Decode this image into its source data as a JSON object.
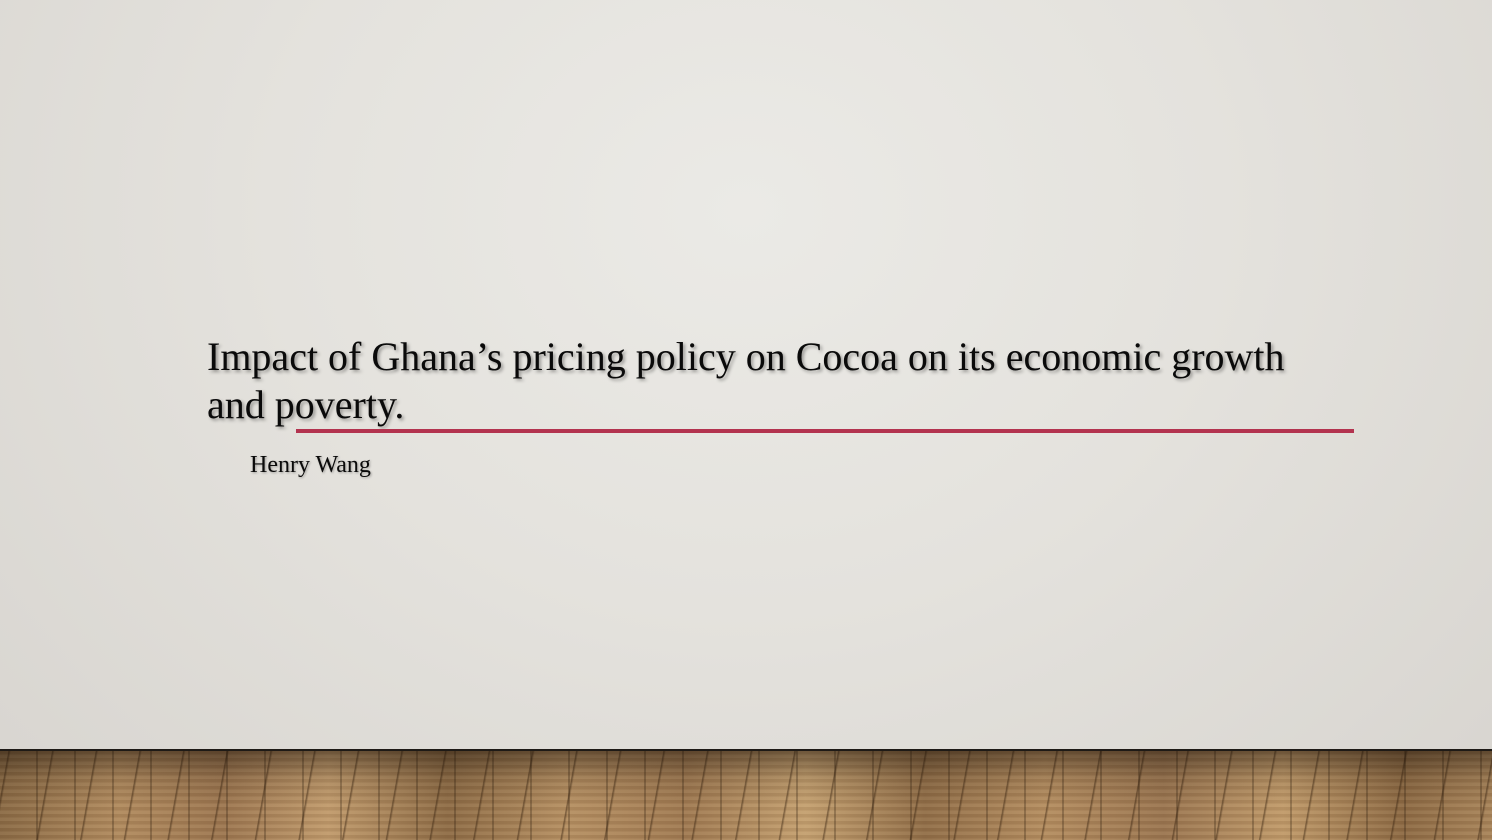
{
  "slide": {
    "title": "Impact of Ghana’s pricing policy on Cocoa on its economic growth and poverty.",
    "subtitle": "Henry Wang",
    "accent_color": "#b3334f"
  }
}
